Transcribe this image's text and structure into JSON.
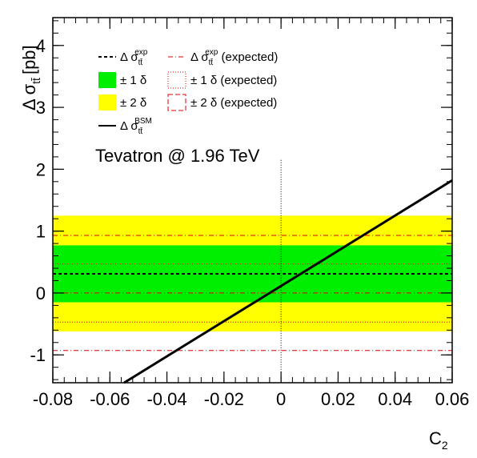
{
  "chart_data": {
    "type": "line",
    "title": "",
    "annotation": "Tevatron @ 1.96 TeV",
    "xlabel": {
      "base": "C",
      "sub": "2"
    },
    "ylabel": {
      "base": "Δ σ",
      "sub": "tt̄",
      "unit": "[pb]"
    },
    "xlim": [
      -0.08,
      0.06
    ],
    "ylim": [
      -1.45,
      4.45
    ],
    "x_ticks": [
      -0.08,
      -0.06,
      -0.04,
      -0.02,
      0,
      0.02,
      0.04,
      0.06
    ],
    "x_tick_labels": [
      "-0.08",
      "-0.06",
      "-0.04",
      "-0.02",
      "0",
      "0.02",
      "0.04",
      "0.06"
    ],
    "y_ticks": [
      -1,
      0,
      1,
      2,
      3,
      4
    ],
    "y_tick_labels": [
      "-1",
      "0",
      "1",
      "2",
      "3",
      "4"
    ],
    "measured": {
      "central": 0.31,
      "band_1sigma": [
        -0.15,
        0.77
      ],
      "band_2sigma": [
        -0.62,
        1.25
      ]
    },
    "expected": {
      "central": 0.0,
      "band_1sigma": [
        -0.47,
        0.47
      ],
      "band_2sigma": [
        -0.93,
        0.93
      ]
    },
    "bsm_line": {
      "x": [
        -0.055,
        0.06
      ],
      "y": [
        -1.45,
        1.82
      ]
    },
    "vertical_marker_x": 0,
    "colors": {
      "band_1sigma": "#00ee00",
      "band_2sigma": "#ffff00",
      "expected": "#dd0000",
      "measured": "#000000"
    },
    "legend": {
      "placement": "top-left",
      "entries": [
        {
          "style": "dashed-black",
          "prefix": "Δ σ",
          "sub": "tt̄",
          "sup": "exp",
          "suffix": ""
        },
        {
          "style": "dashdot-red",
          "prefix": "Δ σ",
          "sub": "tt̄",
          "sup": "exp",
          "suffix": " (expected)"
        },
        {
          "style": "green-box",
          "prefix": "± 1 δ",
          "sub": "",
          "sup": "",
          "suffix": ""
        },
        {
          "style": "red-dotted-box",
          "prefix": "± 1 δ",
          "sub": "",
          "sup": "",
          "suffix": " (expected)"
        },
        {
          "style": "yellow-box",
          "prefix": "± 2 δ",
          "sub": "",
          "sup": "",
          "suffix": ""
        },
        {
          "style": "red-dashed-box",
          "prefix": "± 2 δ",
          "sub": "",
          "sup": "",
          "suffix": " (expected)"
        },
        {
          "style": "solid-black",
          "prefix": "Δ σ",
          "sub": "tt̄",
          "sup": "BSM",
          "suffix": ""
        }
      ]
    }
  }
}
